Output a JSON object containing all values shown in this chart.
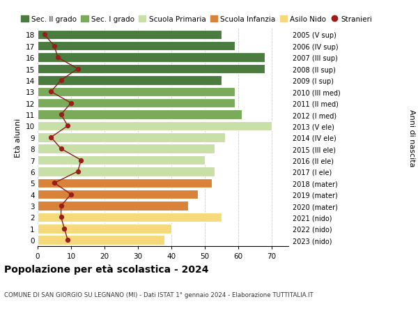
{
  "ages": [
    18,
    17,
    16,
    15,
    14,
    13,
    12,
    11,
    10,
    9,
    8,
    7,
    6,
    5,
    4,
    3,
    2,
    1,
    0
  ],
  "right_labels": [
    "2005 (V sup)",
    "2006 (IV sup)",
    "2007 (III sup)",
    "2008 (II sup)",
    "2009 (I sup)",
    "2010 (III med)",
    "2011 (II med)",
    "2012 (I med)",
    "2013 (V ele)",
    "2014 (IV ele)",
    "2015 (III ele)",
    "2016 (II ele)",
    "2017 (I ele)",
    "2018 (mater)",
    "2019 (mater)",
    "2020 (mater)",
    "2021 (nido)",
    "2022 (nido)",
    "2023 (nido)"
  ],
  "bar_values": [
    55,
    59,
    68,
    68,
    55,
    59,
    59,
    61,
    70,
    56,
    53,
    50,
    53,
    52,
    48,
    45,
    55,
    40,
    38
  ],
  "stranieri_values": [
    2,
    5,
    6,
    12,
    7,
    4,
    10,
    7,
    9,
    4,
    7,
    13,
    12,
    5,
    10,
    7,
    7,
    8,
    9
  ],
  "bar_colors": [
    "#4a7c3f",
    "#4a7c3f",
    "#4a7c3f",
    "#4a7c3f",
    "#4a7c3f",
    "#7aab5a",
    "#7aab5a",
    "#7aab5a",
    "#c8dfa8",
    "#c8dfa8",
    "#c8dfa8",
    "#c8dfa8",
    "#c8dfa8",
    "#d9823a",
    "#d9823a",
    "#d9823a",
    "#f5d97a",
    "#f5d97a",
    "#f5d97a"
  ],
  "legend_labels": [
    "Sec. II grado",
    "Sec. I grado",
    "Scuola Primaria",
    "Scuola Infanzia",
    "Asilo Nido",
    "Stranieri"
  ],
  "legend_colors": [
    "#4a7c3f",
    "#7aab5a",
    "#c8dfa8",
    "#d9823a",
    "#f5d97a",
    "#9b1c1c"
  ],
  "title": "Popolazione per età scolastica - 2024",
  "subtitle": "COMUNE DI SAN GIORGIO SU LEGNANO (MI) - Dati ISTAT 1° gennaio 2024 - Elaborazione TUTTITALIA.IT",
  "ylabel_left": "Età alunni",
  "ylabel_right": "Anni di nascita",
  "xlim": [
    0,
    75
  ],
  "xticks": [
    0,
    10,
    20,
    30,
    40,
    50,
    60,
    70
  ],
  "grid_color": "#cccccc",
  "bar_height": 0.82,
  "stranieri_line_color": "#8b1a1a",
  "stranieri_dot_color": "#9b1c1c"
}
